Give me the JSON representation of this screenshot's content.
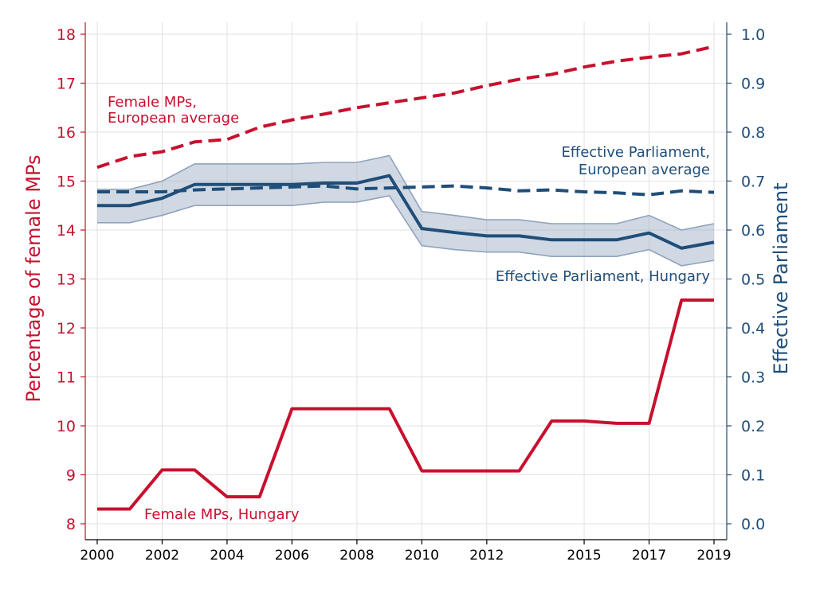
{
  "chart_data": {
    "type": "line",
    "ylabel_left": "Percentage of female MPs",
    "ylabel_right": "Effective Parliament",
    "x_ticks": [
      "2000",
      "2002",
      "2004",
      "2006",
      "2008",
      "2010",
      "2012",
      "2015",
      "2017",
      "2019"
    ],
    "x_tick_positions": [
      2000,
      2002,
      2004,
      2006,
      2008,
      2010,
      2012,
      2015,
      2017,
      2019
    ],
    "y_left_ticks": [
      "8",
      "9",
      "10",
      "11",
      "12",
      "13",
      "14",
      "15",
      "16",
      "17",
      "18"
    ],
    "y_right_ticks": [
      "0.0",
      "0.1",
      "0.2",
      "0.3",
      "0.4",
      "0.5",
      "0.6",
      "0.7",
      "0.8",
      "0.9",
      "1.0"
    ],
    "ylim_left": [
      8,
      18
    ],
    "ylim_right": [
      0,
      1
    ],
    "grid": true,
    "colors": {
      "female": "#c8102e",
      "parliament": "#1f4e79",
      "band": "#8fa3bc"
    },
    "x": [
      2000,
      2001,
      2002,
      2003,
      2004,
      2005,
      2006,
      2007,
      2008,
      2009,
      2010,
      2011,
      2012,
      2013,
      2014,
      2015,
      2016,
      2017,
      2018,
      2019
    ],
    "series": [
      {
        "name": "Female MPs, Hungary",
        "axis": "left",
        "style": "solid",
        "values": [
          8.3,
          8.3,
          9.1,
          9.1,
          8.55,
          8.55,
          10.35,
          10.35,
          10.35,
          10.35,
          9.08,
          9.08,
          9.08,
          9.08,
          10.1,
          10.1,
          10.05,
          10.05,
          12.57,
          12.57
        ]
      },
      {
        "name": "Female MPs, European average",
        "axis": "left",
        "style": "dashed",
        "values": [
          15.28,
          15.5,
          15.6,
          15.8,
          15.85,
          16.1,
          16.25,
          16.37,
          16.5,
          16.6,
          16.7,
          16.8,
          16.95,
          17.08,
          17.18,
          17.33,
          17.45,
          17.53,
          17.6,
          17.75
        ]
      },
      {
        "name": "Effective Parliament, Hungary",
        "axis": "right",
        "style": "solid",
        "values": [
          0.65,
          0.65,
          0.665,
          0.693,
          0.693,
          0.693,
          0.693,
          0.696,
          0.696,
          0.711,
          0.603,
          0.595,
          0.588,
          0.588,
          0.58,
          0.58,
          0.58,
          0.594,
          0.563,
          0.575
        ],
        "ci_lower": [
          0.615,
          0.615,
          0.63,
          0.65,
          0.65,
          0.65,
          0.65,
          0.657,
          0.657,
          0.67,
          0.568,
          0.56,
          0.555,
          0.555,
          0.546,
          0.546,
          0.546,
          0.56,
          0.527,
          0.538
        ],
        "ci_upper": [
          0.683,
          0.683,
          0.7,
          0.735,
          0.735,
          0.735,
          0.735,
          0.738,
          0.738,
          0.752,
          0.638,
          0.63,
          0.621,
          0.621,
          0.613,
          0.613,
          0.613,
          0.63,
          0.6,
          0.613
        ]
      },
      {
        "name": "Effective Parliament, European average",
        "axis": "right",
        "style": "dashed",
        "values": [
          0.678,
          0.678,
          0.678,
          0.682,
          0.684,
          0.686,
          0.688,
          0.69,
          0.684,
          0.686,
          0.688,
          0.69,
          0.686,
          0.68,
          0.682,
          0.678,
          0.676,
          0.672,
          0.68,
          0.677
        ]
      }
    ],
    "annotations": [
      {
        "key": "fem_eu_1",
        "text": "Female MPs,"
      },
      {
        "key": "fem_eu_2",
        "text": "European average"
      },
      {
        "key": "par_eu_1",
        "text": "Effective Parliament,"
      },
      {
        "key": "par_eu_2",
        "text": "European average"
      },
      {
        "key": "par_hu",
        "text": "Effective Parliament, Hungary"
      },
      {
        "key": "fem_hu",
        "text": "Female MPs, Hungary"
      }
    ]
  }
}
